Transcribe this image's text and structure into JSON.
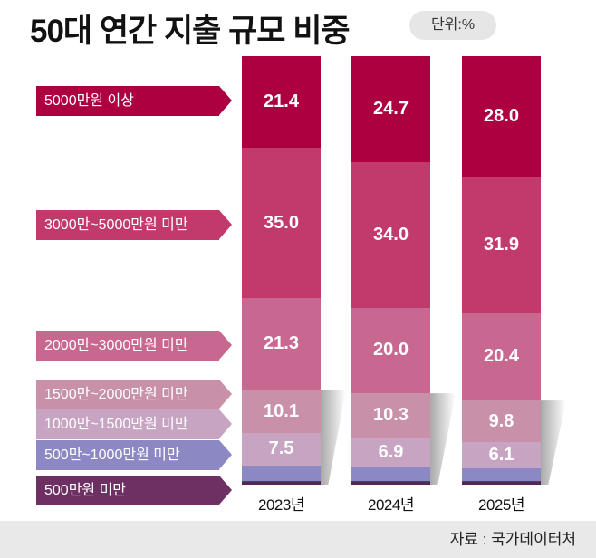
{
  "header": {
    "title": "50대 연간 지출 규모 비중",
    "unit_badge": "단위:%"
  },
  "legend": [
    {
      "label": "5000만원 이상",
      "color": "#ad0040"
    },
    {
      "label": "3000만~5000만원 미만",
      "color": "#c23a6c"
    },
    {
      "label": "2000만~3000만원 미만",
      "color": "#c86891"
    },
    {
      "label": "1500만~2000만원 미만",
      "color": "#c990aa"
    },
    {
      "label": "1000만~1500만원 미만",
      "color": "#c8a4c3"
    },
    {
      "label": "500만~1000만원 미만",
      "color": "#8c88c4"
    },
    {
      "label": "500만원 미만",
      "color": "#6e2f62"
    }
  ],
  "bars": [
    {
      "year": "2023년",
      "segments": [
        {
          "value": "21.4",
          "flex": 21.4
        },
        {
          "value": "35.0",
          "flex": 35.0
        },
        {
          "value": "21.3",
          "flex": 21.3
        },
        {
          "value": "10.1",
          "flex": 10.1
        },
        {
          "value": "7.5",
          "flex": 7.5
        },
        {
          "value": "",
          "flex": 3.6
        },
        {
          "value": "",
          "flex": 0.3
        }
      ]
    },
    {
      "year": "2024년",
      "segments": [
        {
          "value": "24.7",
          "flex": 24.7
        },
        {
          "value": "34.0",
          "flex": 34.0
        },
        {
          "value": "20.0",
          "flex": 20.0
        },
        {
          "value": "10.3",
          "flex": 10.3
        },
        {
          "value": "6.9",
          "flex": 6.9
        },
        {
          "value": "",
          "flex": 3.2
        },
        {
          "value": "",
          "flex": 0.3
        }
      ]
    },
    {
      "year": "2025년",
      "segments": [
        {
          "value": "28.0",
          "flex": 28.0
        },
        {
          "value": "31.9",
          "flex": 31.9
        },
        {
          "value": "20.4",
          "flex": 20.4
        },
        {
          "value": "9.8",
          "flex": 9.8
        },
        {
          "value": "6.1",
          "flex": 6.1
        },
        {
          "value": "",
          "flex": 2.8
        },
        {
          "value": "",
          "flex": 0.3
        }
      ]
    }
  ],
  "footer": {
    "source": "자료 : 국가데이터처"
  },
  "chart_data": {
    "type": "bar",
    "stacked": true,
    "title": "50대 연간 지출 규모 비중",
    "unit": "%",
    "categories": [
      "2023년",
      "2024년",
      "2025년"
    ],
    "series": [
      {
        "name": "5000만원 이상",
        "values": [
          21.4,
          24.7,
          28.0
        ]
      },
      {
        "name": "3000만~5000만원 미만",
        "values": [
          35.0,
          34.0,
          31.9
        ]
      },
      {
        "name": "2000만~3000만원 미만",
        "values": [
          21.3,
          20.0,
          20.4
        ]
      },
      {
        "name": "1500만~2000만원 미만",
        "values": [
          10.1,
          10.3,
          9.8
        ]
      },
      {
        "name": "1000만~1500만원 미만",
        "values": [
          7.5,
          6.9,
          6.1
        ]
      },
      {
        "name": "500만~1000만원 미만",
        "values": [
          null,
          null,
          null
        ]
      },
      {
        "name": "500만원 미만",
        "values": [
          null,
          null,
          null
        ]
      }
    ],
    "legend_position": "left",
    "grid": false,
    "source": "자료 : 국가데이터처"
  }
}
